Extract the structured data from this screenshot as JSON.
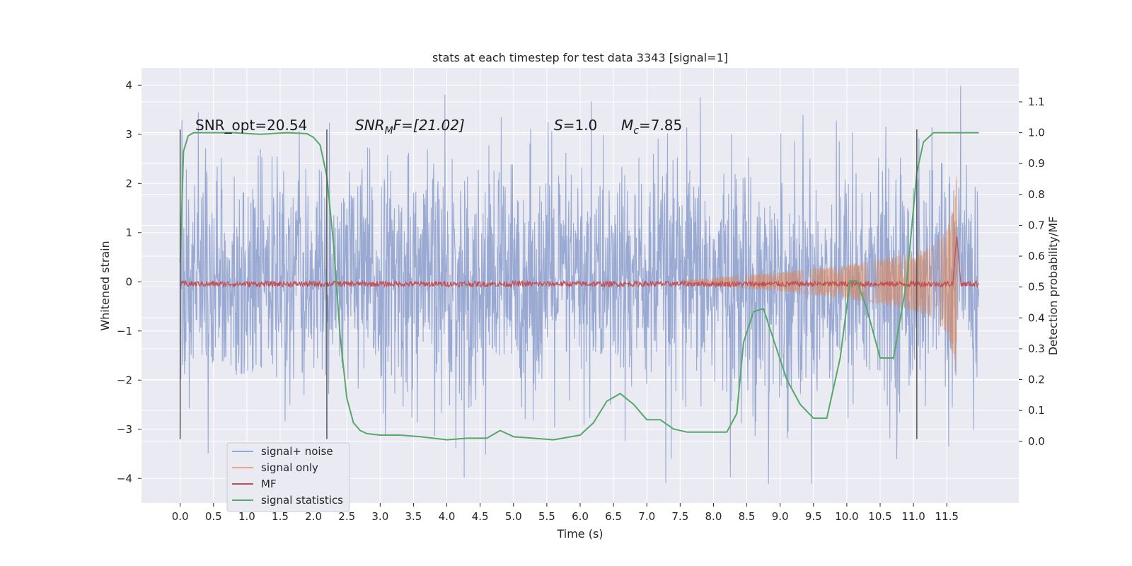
{
  "chart_data": {
    "type": "line",
    "title": "stats at each timestep for test data 3343 [signal=1]",
    "xlabel": "Time (s)",
    "ylabel_left": "Whitened strain",
    "ylabel_right": "Detection probability/MF",
    "xlim": [
      -0.58,
      12.58
    ],
    "ylim_left": [
      -4.5,
      4.35
    ],
    "ylim_right": [
      -0.2,
      1.21
    ],
    "x_ticks": [
      "0.0",
      "0.5",
      "1.0",
      "1.5",
      "2.0",
      "2.5",
      "3.0",
      "3.5",
      "4.0",
      "4.5",
      "5.0",
      "5.5",
      "6.0",
      "6.5",
      "7.0",
      "7.5",
      "8.0",
      "8.5",
      "9.0",
      "9.5",
      "10.0",
      "10.5",
      "11.0",
      "11.5"
    ],
    "y_ticks_left": [
      "4",
      "3",
      "2",
      "1",
      "0",
      "−1",
      "−2",
      "−3",
      "−4"
    ],
    "y_ticks_right": [
      "1.1",
      "1.0",
      "0.9",
      "0.8",
      "0.7",
      "0.6",
      "0.5",
      "0.4",
      "0.3",
      "0.2",
      "0.1",
      "0.0"
    ],
    "annotations": {
      "snr_opt": "SNR_opt=20.54",
      "snr_mf_prefix": "SNR",
      "snr_mf_sub": "M",
      "snr_mf_suffix": "F=[21.02]",
      "s_prefix": "S",
      "s_value": "=1.0",
      "mc_prefix": "M",
      "mc_sub": "c",
      "mc_value": "=7.85"
    },
    "vlines_s": [
      0.0,
      2.2,
      11.05
    ],
    "legend": [
      {
        "label": "signal+ noise",
        "color": "#99a9d2"
      },
      {
        "label": "signal only",
        "color": "#e8a88f"
      },
      {
        "label": "MF",
        "color": "#c44e52"
      },
      {
        "label": "signal statistics",
        "color": "#55a868"
      }
    ],
    "series": [
      {
        "name": "signal+ noise",
        "axis": "left",
        "x_range": [
          0.0,
          11.98
        ],
        "envelope_typical": [
          -1.3,
          1.3
        ],
        "envelope_extreme": [
          -4.1,
          3.98
        ]
      },
      {
        "name": "signal only",
        "axis": "left",
        "x": [
          7.5,
          8.0,
          8.5,
          9.0,
          9.5,
          10.0,
          10.5,
          11.0,
          11.3,
          11.5,
          11.6,
          11.65
        ],
        "amplitude": [
          0.02,
          0.08,
          0.14,
          0.2,
          0.27,
          0.35,
          0.46,
          0.6,
          0.75,
          1.05,
          1.6,
          2.2
        ]
      },
      {
        "name": "MF",
        "axis": "right",
        "baseline": 0.51,
        "x_range": [
          0.0,
          11.98
        ],
        "peak": {
          "x": 11.65,
          "y": 0.67
        }
      },
      {
        "name": "signal statistics",
        "axis": "right",
        "x": [
          0.0,
          0.05,
          0.12,
          0.2,
          0.4,
          0.8,
          1.2,
          1.6,
          1.9,
          2.0,
          2.1,
          2.2,
          2.3,
          2.4,
          2.5,
          2.6,
          2.7,
          2.8,
          3.0,
          3.3,
          3.6,
          4.0,
          4.3,
          4.6,
          4.8,
          5.0,
          5.3,
          5.6,
          6.0,
          6.2,
          6.4,
          6.6,
          6.8,
          7.0,
          7.2,
          7.4,
          7.6,
          7.9,
          8.2,
          8.35,
          8.45,
          8.6,
          8.75,
          8.9,
          9.1,
          9.3,
          9.5,
          9.7,
          9.9,
          10.05,
          10.15,
          10.3,
          10.5,
          10.7,
          10.9,
          11.05,
          11.15,
          11.3,
          11.5,
          11.8,
          11.98
        ],
        "values": [
          0.58,
          0.94,
          0.99,
          1.0,
          1.0,
          1.0,
          0.995,
          1.0,
          0.997,
          0.985,
          0.96,
          0.86,
          0.64,
          0.34,
          0.14,
          0.06,
          0.035,
          0.025,
          0.02,
          0.02,
          0.015,
          0.005,
          0.01,
          0.01,
          0.035,
          0.015,
          0.01,
          0.005,
          0.02,
          0.06,
          0.13,
          0.155,
          0.12,
          0.07,
          0.07,
          0.04,
          0.03,
          0.03,
          0.03,
          0.09,
          0.32,
          0.42,
          0.43,
          0.33,
          0.2,
          0.12,
          0.075,
          0.075,
          0.27,
          0.52,
          0.52,
          0.43,
          0.27,
          0.27,
          0.52,
          0.87,
          0.97,
          1.0,
          1.0,
          1.0,
          1.0
        ]
      }
    ],
    "grid": true,
    "legend_position": "lower-left"
  }
}
